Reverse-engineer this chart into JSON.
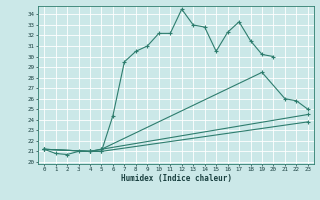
{
  "xlabel": "Humidex (Indice chaleur)",
  "bg_color": "#cbe8e8",
  "grid_color": "#ffffff",
  "line_color": "#2e7d6e",
  "xlim": [
    -0.5,
    23.5
  ],
  "ylim": [
    19.8,
    34.8
  ],
  "yticks": [
    20,
    21,
    22,
    23,
    24,
    25,
    26,
    27,
    28,
    29,
    30,
    31,
    32,
    33,
    34
  ],
  "xticks": [
    0,
    1,
    2,
    3,
    4,
    5,
    6,
    7,
    8,
    9,
    10,
    11,
    12,
    13,
    14,
    15,
    16,
    17,
    18,
    19,
    20,
    21,
    22,
    23
  ],
  "line1": {
    "x": [
      0,
      1,
      2,
      3,
      4,
      5,
      6,
      7,
      8,
      9,
      10,
      11,
      12,
      13,
      14,
      15,
      16,
      17,
      18,
      19,
      20
    ],
    "y": [
      21.2,
      20.8,
      20.7,
      21.0,
      21.0,
      21.0,
      24.4,
      29.5,
      30.5,
      31.0,
      32.2,
      32.2,
      34.5,
      33.0,
      32.8,
      30.5,
      32.3,
      33.3,
      31.5,
      30.2,
      30.0
    ]
  },
  "line2": {
    "x": [
      0,
      4,
      5,
      19,
      21,
      22,
      23
    ],
    "y": [
      21.2,
      21.0,
      21.2,
      28.5,
      26.0,
      25.8,
      25.0
    ]
  },
  "line3": {
    "x": [
      0,
      4,
      5,
      23
    ],
    "y": [
      21.2,
      21.0,
      21.2,
      24.5
    ]
  },
  "line4": {
    "x": [
      0,
      4,
      5,
      23
    ],
    "y": [
      21.2,
      21.0,
      21.0,
      23.8
    ]
  }
}
